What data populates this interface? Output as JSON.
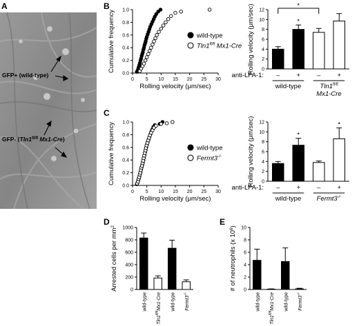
{
  "panel_labels": {
    "A": "A",
    "B": "B",
    "C": "C",
    "D": "D",
    "E": "E"
  },
  "micrograph": {
    "label_gfp_pos": "GFP+ (wild-type)",
    "label_gfp_neg_prefix": "GFP- (",
    "label_gfp_neg_gene": "Tln1",
    "label_gfp_neg_sup": "fl/fl",
    "label_gfp_neg_suffix": " Mx1-Cre",
    "label_gfp_neg_close": ")",
    "background_color": "#8f8f8f"
  },
  "colors": {
    "filled": "#000000",
    "open": "#ffffff",
    "stroke": "#000000"
  },
  "chart_data": [
    {
      "id": "B-left",
      "type": "scatter",
      "xlabel": "Rolling velocity (μm/sec)",
      "ylabel": "Cumulative frequency",
      "xlim": [
        0,
        30
      ],
      "ylim": [
        0,
        1.0
      ],
      "xticks": [
        "0",
        "5",
        "10",
        "15",
        "20",
        "25",
        "30"
      ],
      "yticks": [
        "0.0",
        "0.2",
        "0.4",
        "0.6",
        "0.8",
        "1.0"
      ],
      "legend_position": "right",
      "series": [
        {
          "name": "wild-type",
          "marker": "filled",
          "points": [
            [
              1.5,
              0.02
            ],
            [
              1.8,
              0.04
            ],
            [
              2.0,
              0.07
            ],
            [
              2.2,
              0.1
            ],
            [
              2.4,
              0.13
            ],
            [
              2.6,
              0.16
            ],
            [
              2.8,
              0.2
            ],
            [
              3.0,
              0.23
            ],
            [
              3.2,
              0.27
            ],
            [
              3.4,
              0.3
            ],
            [
              3.6,
              0.33
            ],
            [
              3.8,
              0.37
            ],
            [
              4.0,
              0.4
            ],
            [
              4.2,
              0.44
            ],
            [
              4.4,
              0.47
            ],
            [
              4.6,
              0.5
            ],
            [
              4.8,
              0.54
            ],
            [
              5.0,
              0.57
            ],
            [
              5.3,
              0.61
            ],
            [
              5.6,
              0.65
            ],
            [
              5.9,
              0.69
            ],
            [
              6.2,
              0.73
            ],
            [
              6.6,
              0.77
            ],
            [
              7.0,
              0.81
            ],
            [
              7.4,
              0.85
            ],
            [
              7.8,
              0.89
            ],
            [
              8.3,
              0.93
            ],
            [
              9.0,
              0.97
            ],
            [
              9.8,
              1.0
            ]
          ]
        },
        {
          "name_prefix": "Tln1",
          "name_sup": "fl/fl",
          "name_suffix": " Mx1-Cre",
          "marker": "open",
          "points": [
            [
              2.5,
              0.03
            ],
            [
              3.0,
              0.07
            ],
            [
              3.5,
              0.11
            ],
            [
              4.0,
              0.15
            ],
            [
              4.5,
              0.2
            ],
            [
              5.0,
              0.25
            ],
            [
              5.5,
              0.3
            ],
            [
              6.0,
              0.35
            ],
            [
              6.5,
              0.4
            ],
            [
              7.0,
              0.45
            ],
            [
              7.5,
              0.5
            ],
            [
              8.0,
              0.55
            ],
            [
              8.5,
              0.6
            ],
            [
              9.2,
              0.65
            ],
            [
              10.0,
              0.7
            ],
            [
              10.8,
              0.75
            ],
            [
              11.6,
              0.8
            ],
            [
              12.5,
              0.85
            ],
            [
              13.5,
              0.9
            ],
            [
              15.0,
              0.95
            ],
            [
              17.0,
              0.97
            ],
            [
              27.0,
              1.0
            ]
          ]
        }
      ]
    },
    {
      "id": "B-right",
      "type": "bar",
      "ylabel": "Rolling velocity (μm/sec)",
      "ylim": [
        0,
        12
      ],
      "yticks": [
        "0",
        "2",
        "4",
        "6",
        "8",
        "10",
        "12"
      ],
      "treatment_label": "anti-LFA-1:",
      "treatment_ticks": [
        "–",
        "+",
        "–",
        "+"
      ],
      "group_labels": [
        "wild-type"
      ],
      "group2_label_prefix": "Tln1",
      "group2_label_sup": "fl/fl",
      "group2_label_suffix": "Mx1-Cre",
      "values": [
        4.0,
        8.0,
        7.4,
        9.7
      ],
      "errors": [
        0.5,
        0.9,
        0.8,
        1.5
      ],
      "fills": [
        "filled",
        "filled",
        "open",
        "open"
      ],
      "significance": [
        "",
        "*",
        "",
        ""
      ],
      "bracket_label": "*",
      "bracket_between": [
        0,
        2
      ]
    },
    {
      "id": "C-left",
      "type": "scatter",
      "xlabel": "Rolling velocity (μm/sec)",
      "ylabel": "Cumulative frequency",
      "xlim": [
        0,
        30
      ],
      "ylim": [
        0,
        1.0
      ],
      "xticks": [
        "0",
        "5",
        "10",
        "15",
        "20",
        "25",
        "30"
      ],
      "yticks": [
        "0.0",
        "0.2",
        "0.4",
        "0.6",
        "0.8",
        "1.0"
      ],
      "legend_position": "right",
      "series": [
        {
          "name": "wild-type",
          "marker": "filled",
          "points": [
            [
              1.5,
              0.02
            ],
            [
              1.8,
              0.05
            ],
            [
              2.0,
              0.08
            ],
            [
              2.2,
              0.11
            ],
            [
              2.4,
              0.14
            ],
            [
              2.6,
              0.18
            ],
            [
              2.8,
              0.21
            ],
            [
              3.0,
              0.25
            ],
            [
              3.2,
              0.29
            ],
            [
              3.4,
              0.32
            ],
            [
              3.6,
              0.36
            ],
            [
              3.8,
              0.4
            ],
            [
              4.0,
              0.44
            ],
            [
              4.2,
              0.48
            ],
            [
              4.4,
              0.52
            ],
            [
              4.6,
              0.56
            ],
            [
              4.8,
              0.6
            ],
            [
              5.0,
              0.64
            ],
            [
              5.3,
              0.68
            ],
            [
              5.6,
              0.72
            ],
            [
              5.9,
              0.76
            ],
            [
              6.2,
              0.8
            ],
            [
              6.5,
              0.84
            ],
            [
              6.9,
              0.88
            ],
            [
              7.3,
              0.92
            ],
            [
              7.8,
              0.95
            ],
            [
              9.5,
              0.97
            ],
            [
              10.5,
              1.0
            ]
          ]
        },
        {
          "name_prefix": "Fermt3",
          "name_sup": "-/-",
          "marker": "open",
          "points": [
            [
              1.6,
              0.03
            ],
            [
              1.9,
              0.06
            ],
            [
              2.1,
              0.1
            ],
            [
              2.3,
              0.13
            ],
            [
              2.5,
              0.17
            ],
            [
              2.7,
              0.2
            ],
            [
              2.9,
              0.24
            ],
            [
              3.1,
              0.28
            ],
            [
              3.3,
              0.31
            ],
            [
              3.5,
              0.35
            ],
            [
              3.7,
              0.39
            ],
            [
              3.9,
              0.43
            ],
            [
              4.1,
              0.47
            ],
            [
              4.3,
              0.51
            ],
            [
              4.5,
              0.55
            ],
            [
              4.7,
              0.59
            ],
            [
              4.9,
              0.63
            ],
            [
              5.2,
              0.67
            ],
            [
              5.5,
              0.71
            ],
            [
              5.8,
              0.75
            ],
            [
              6.1,
              0.79
            ],
            [
              6.5,
              0.83
            ],
            [
              7.0,
              0.87
            ],
            [
              7.5,
              0.91
            ],
            [
              8.2,
              0.94
            ],
            [
              10.0,
              0.97
            ],
            [
              12.0,
              0.98
            ],
            [
              14.0,
              1.0
            ]
          ]
        }
      ]
    },
    {
      "id": "C-right",
      "type": "bar",
      "ylabel": "Rolling velocity (μm/sec)",
      "ylim": [
        0,
        12
      ],
      "yticks": [
        "0",
        "2",
        "4",
        "6",
        "8",
        "10",
        "12"
      ],
      "treatment_label": "anti-LFA-1:",
      "treatment_ticks": [
        "–",
        "+",
        "–",
        "+"
      ],
      "group_labels": [
        "wild-type"
      ],
      "group2_label_prefix": "Fermt3",
      "group2_label_sup": "-/-",
      "values": [
        3.6,
        7.3,
        3.8,
        8.6
      ],
      "errors": [
        0.4,
        1.4,
        0.3,
        2.2
      ],
      "fills": [
        "filled",
        "filled",
        "open",
        "open"
      ],
      "significance": [
        "",
        "*",
        "",
        "*"
      ]
    },
    {
      "id": "D",
      "type": "bar",
      "ylabel": "Arrested cells per mm",
      "ylabel_sup": "2",
      "ylim": [
        0,
        1000
      ],
      "yticks": [
        "0",
        "200",
        "400",
        "600",
        "800",
        "1000"
      ],
      "categories": [
        "wild-type",
        "Tln1fl/fl Mx1-Cre",
        "wild-type",
        "Fermt3-/-"
      ],
      "cat_display": [
        {
          "text": "wild-type"
        },
        {
          "prefix": "Tln1",
          "sup": "fl/fl",
          "suffix": "Mx1-Cre"
        },
        {
          "text": "wild-type"
        },
        {
          "prefix": "Fermt3",
          "sup": "-/-"
        }
      ],
      "values": [
        830,
        185,
        665,
        125
      ],
      "errors": [
        80,
        35,
        130,
        30
      ],
      "fills": [
        "filled",
        "open",
        "filled",
        "open"
      ]
    },
    {
      "id": "E",
      "type": "bar",
      "ylabel": "# of neutrophils (x 10",
      "ylabel_sup": "6",
      "ylabel_close": ")",
      "ylim": [
        0,
        10
      ],
      "yticks": [
        "0",
        "2",
        "4",
        "6",
        "8",
        "10"
      ],
      "categories": [
        "wild-type",
        "Tln1fl/fl Mx1-Cre",
        "wild-type",
        "Fermt3-/-"
      ],
      "cat_display": [
        {
          "text": "wild-type"
        },
        {
          "prefix": "Tln1",
          "sup": "fl/fl",
          "suffix": "Mx1-Cre"
        },
        {
          "text": "wild-type"
        },
        {
          "prefix": "Fermt3",
          "sup": "-/-"
        }
      ],
      "values": [
        4.7,
        0.05,
        4.5,
        0.1
      ],
      "errors": [
        1.8,
        0.05,
        2.2,
        0.1
      ],
      "fills": [
        "filled",
        "open",
        "filled",
        "open"
      ]
    }
  ]
}
